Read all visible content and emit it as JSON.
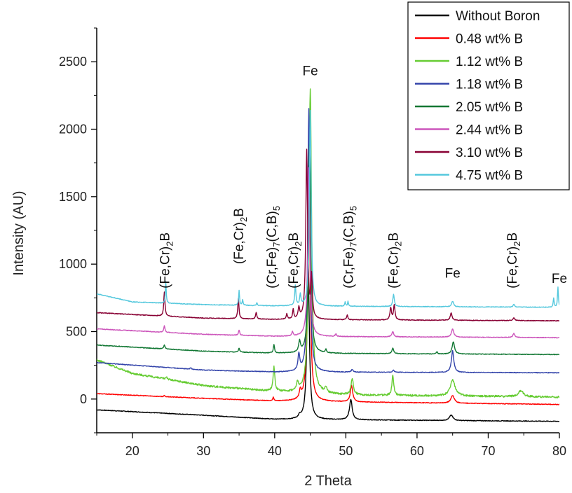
{
  "chart_data": {
    "type": "line",
    "title": "",
    "xlabel": "2 Theta",
    "ylabel": "Intensity (AU)",
    "xlim": [
      15,
      80
    ],
    "ylim": [
      -250,
      2750
    ],
    "xticks": [
      20,
      30,
      40,
      50,
      60,
      70,
      80
    ],
    "yticks": [
      0,
      500,
      1000,
      1500,
      2000,
      2500
    ],
    "grid": false,
    "legend_position": "top-right",
    "series": [
      {
        "name": "Without Boron",
        "color": "#000000",
        "baseline": [
          [
            15,
            -80
          ],
          [
            30,
            -120
          ],
          [
            40,
            -150
          ],
          [
            80,
            -165
          ]
        ],
        "peaks": [
          [
            43.5,
            20,
            0.35
          ],
          [
            44.7,
            1150,
            0.4
          ],
          [
            50.7,
            150,
            0.45
          ],
          [
            64.8,
            40,
            0.6
          ]
        ]
      },
      {
        "name": "0.48 wt% B",
        "color": "#ff0000",
        "baseline": [
          [
            15,
            40
          ],
          [
            30,
            5
          ],
          [
            40,
            -15
          ],
          [
            80,
            -40
          ]
        ],
        "peaks": [
          [
            24.5,
            8,
            0.15
          ],
          [
            39.8,
            25,
            0.2
          ],
          [
            43.6,
            60,
            0.3
          ],
          [
            44.8,
            1750,
            0.4
          ],
          [
            50.8,
            120,
            0.4
          ],
          [
            65.0,
            55,
            0.6
          ]
        ]
      },
      {
        "name": "1.12 wt% B",
        "color": "#66cc33",
        "baseline": [
          [
            15,
            290
          ],
          [
            20,
            190
          ],
          [
            30,
            100
          ],
          [
            40,
            55
          ],
          [
            50,
            30
          ],
          [
            80,
            15
          ]
        ],
        "peaks": [
          [
            24.8,
            20,
            0.25
          ],
          [
            39.9,
            180,
            0.3
          ],
          [
            43.2,
            60,
            0.3
          ],
          [
            45.0,
            2250,
            0.45
          ],
          [
            47.2,
            40,
            0.3
          ],
          [
            50.9,
            120,
            0.4
          ],
          [
            56.6,
            150,
            0.3
          ],
          [
            65.0,
            120,
            0.8
          ],
          [
            74.6,
            45,
            0.8
          ]
        ]
      },
      {
        "name": "1.18 wt% B",
        "color": "#3344aa",
        "baseline": [
          [
            15,
            270
          ],
          [
            30,
            215
          ],
          [
            40,
            200
          ],
          [
            80,
            195
          ]
        ],
        "peaks": [
          [
            28.2,
            10,
            0.2
          ],
          [
            43.4,
            120,
            0.3
          ],
          [
            44.8,
            1950,
            0.35
          ],
          [
            50.9,
            20,
            0.3
          ],
          [
            56.7,
            15,
            0.3
          ],
          [
            65.0,
            160,
            0.4
          ]
        ]
      },
      {
        "name": "2.05 wt% B",
        "color": "#117733",
        "baseline": [
          [
            15,
            400
          ],
          [
            30,
            355
          ],
          [
            40,
            340
          ],
          [
            80,
            330
          ]
        ],
        "peaks": [
          [
            24.5,
            30,
            0.2
          ],
          [
            35.0,
            30,
            0.2
          ],
          [
            39.9,
            60,
            0.2
          ],
          [
            43.5,
            80,
            0.3
          ],
          [
            44.9,
            1550,
            0.35
          ],
          [
            47.2,
            25,
            0.2
          ],
          [
            56.6,
            40,
            0.3
          ],
          [
            62.8,
            15,
            0.2
          ],
          [
            65.1,
            90,
            0.4
          ]
        ]
      },
      {
        "name": "2.44 wt% B",
        "color": "#cc55bb",
        "baseline": [
          [
            15,
            520
          ],
          [
            30,
            480
          ],
          [
            40,
            465
          ],
          [
            80,
            455
          ]
        ],
        "peaks": [
          [
            24.5,
            50,
            0.2
          ],
          [
            35.0,
            40,
            0.2
          ],
          [
            42.5,
            30,
            0.2
          ],
          [
            44.8,
            1250,
            0.35
          ],
          [
            48.6,
            20,
            0.2
          ],
          [
            56.6,
            40,
            0.3
          ],
          [
            65.0,
            60,
            0.4
          ],
          [
            73.6,
            30,
            0.3
          ]
        ]
      },
      {
        "name": "3.10 wt% B",
        "color": "#880033",
        "baseline": [
          [
            15,
            640
          ],
          [
            30,
            600
          ],
          [
            40,
            590
          ],
          [
            80,
            580
          ]
        ],
        "peaks": [
          [
            24.5,
            180,
            0.2
          ],
          [
            34.9,
            150,
            0.2
          ],
          [
            37.4,
            50,
            0.2
          ],
          [
            41.7,
            40,
            0.2
          ],
          [
            42.6,
            70,
            0.2
          ],
          [
            43.4,
            80,
            0.25
          ],
          [
            44.5,
            1250,
            0.3
          ],
          [
            45.2,
            300,
            0.25
          ],
          [
            50.2,
            35,
            0.2
          ],
          [
            56.3,
            90,
            0.25
          ],
          [
            56.8,
            110,
            0.25
          ],
          [
            64.8,
            55,
            0.3
          ],
          [
            73.6,
            20,
            0.3
          ]
        ]
      },
      {
        "name": "4.75 wt% B",
        "color": "#55c8dd",
        "baseline": [
          [
            15,
            780
          ],
          [
            20,
            720
          ],
          [
            30,
            700
          ],
          [
            40,
            690
          ],
          [
            80,
            680
          ]
        ],
        "peaks": [
          [
            24.7,
            160,
            0.15
          ],
          [
            35.0,
            110,
            0.15
          ],
          [
            35.5,
            40,
            0.15
          ],
          [
            37.5,
            20,
            0.15
          ],
          [
            42.9,
            150,
            0.2
          ],
          [
            43.6,
            80,
            0.2
          ],
          [
            45.0,
            1450,
            0.3
          ],
          [
            49.9,
            30,
            0.15
          ],
          [
            50.3,
            35,
            0.15
          ],
          [
            56.7,
            90,
            0.25
          ],
          [
            65.0,
            40,
            0.35
          ],
          [
            73.6,
            20,
            0.25
          ],
          [
            79.2,
            70,
            0.15
          ],
          [
            79.8,
            150,
            0.15
          ]
        ]
      }
    ],
    "annotations": [
      {
        "x": 24.5,
        "y": 820,
        "segments": [
          [
            "(Fe,Cr)",
            ""
          ],
          [
            "2",
            "sub"
          ],
          [
            "B",
            ""
          ]
        ],
        "rotate": true
      },
      {
        "x": 34.9,
        "y": 1000,
        "segments": [
          [
            "(Fe,Cr)",
            ""
          ],
          [
            "2",
            "sub"
          ],
          [
            "B",
            ""
          ]
        ],
        "rotate": true
      },
      {
        "x": 39.5,
        "y": 820,
        "segments": [
          [
            "(Cr,Fe)",
            ""
          ],
          [
            "7",
            "sub"
          ],
          [
            "(C,B)",
            ""
          ],
          [
            "5",
            "sub"
          ]
        ],
        "rotate": true
      },
      {
        "x": 42.6,
        "y": 820,
        "segments": [
          [
            "(Fe,Cr)",
            ""
          ],
          [
            "2",
            "sub"
          ],
          [
            "B",
            ""
          ]
        ],
        "rotate": true
      },
      {
        "x": 50.3,
        "y": 820,
        "segments": [
          [
            "(Cr,Fe)",
            ""
          ],
          [
            "7",
            "sub"
          ],
          [
            "(C,B)",
            ""
          ],
          [
            "5",
            "sub"
          ]
        ],
        "rotate": true
      },
      {
        "x": 56.6,
        "y": 820,
        "segments": [
          [
            "(Fe,Cr)",
            ""
          ],
          [
            "2",
            "sub"
          ],
          [
            "B",
            ""
          ]
        ],
        "rotate": true
      },
      {
        "x": 73.3,
        "y": 820,
        "segments": [
          [
            "(Fe,Cr)",
            ""
          ],
          [
            "2",
            "sub"
          ],
          [
            "B",
            ""
          ]
        ],
        "rotate": true
      },
      {
        "x": 45.0,
        "y": 2400,
        "segments": [
          [
            "Fe",
            ""
          ]
        ],
        "rotate": false
      },
      {
        "x": 65.0,
        "y": 900,
        "segments": [
          [
            "Fe",
            ""
          ]
        ],
        "rotate": false
      },
      {
        "x": 80.0,
        "y": 860,
        "segments": [
          [
            "Fe",
            ""
          ]
        ],
        "rotate": false
      }
    ]
  }
}
